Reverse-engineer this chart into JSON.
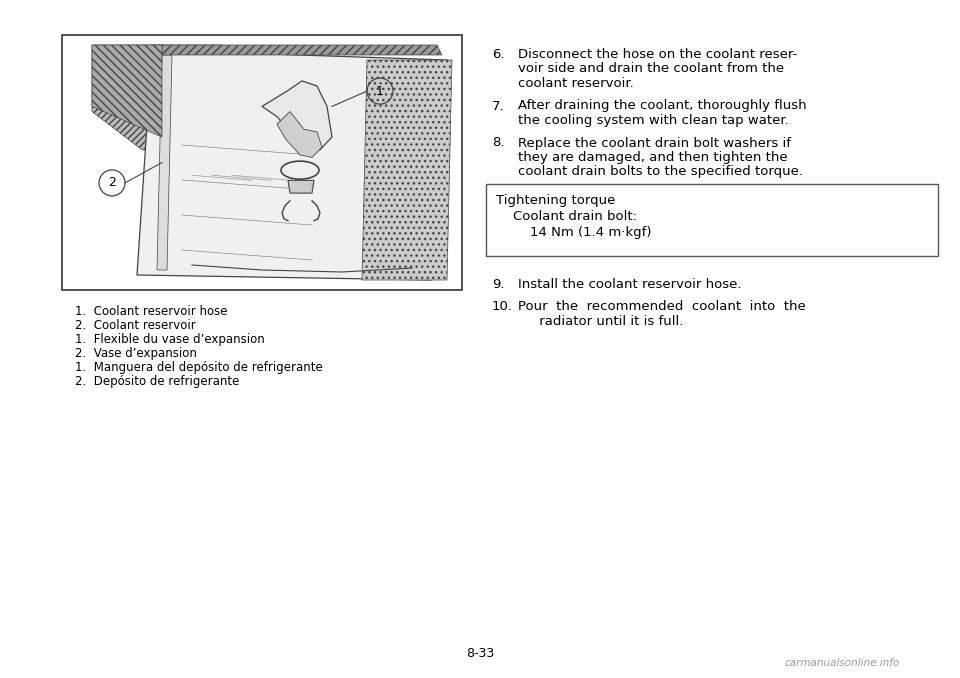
{
  "bg_color": "#ffffff",
  "page_number": "8-33",
  "left_caption_lines": [
    "1.  Coolant reservoir hose",
    "2.  Coolant reservoir",
    "1.  Flexible du vase d’expansion",
    "2.  Vase d’expansion",
    "1.  Manguera del depósito de refrigerante",
    "2.  Depósito de refrigerante"
  ],
  "right_text_items": [
    {
      "num": "6.",
      "lines": [
        "Disconnect the hose on the coolant reser-",
        "voir side and drain the coolant from the",
        "coolant reservoir."
      ]
    },
    {
      "num": "7.",
      "lines": [
        "After draining the coolant, thoroughly flush",
        "the cooling system with clean tap water."
      ]
    },
    {
      "num": "8.",
      "lines": [
        "Replace the coolant drain bolt washers if",
        "they are damaged, and then tighten the",
        "coolant drain bolts to the specified torque."
      ]
    }
  ],
  "torque_box_lines": [
    "Tightening torque",
    "    Coolant drain bolt:",
    "        14 Nm (1.4 m·kgf)"
  ],
  "bottom_items": [
    {
      "num": "9.",
      "lines": [
        "Install the coolant reservoir hose."
      ]
    },
    {
      "num": "10.",
      "lines": [
        "Pour  the  recommended  coolant  into  the",
        "     radiator until it is full."
      ]
    }
  ],
  "watermark": "carmanualsonline.info",
  "img_border_color": "#333333",
  "font_size_main": 9.5,
  "font_size_caption": 8.5,
  "font_size_torque": 9.5
}
